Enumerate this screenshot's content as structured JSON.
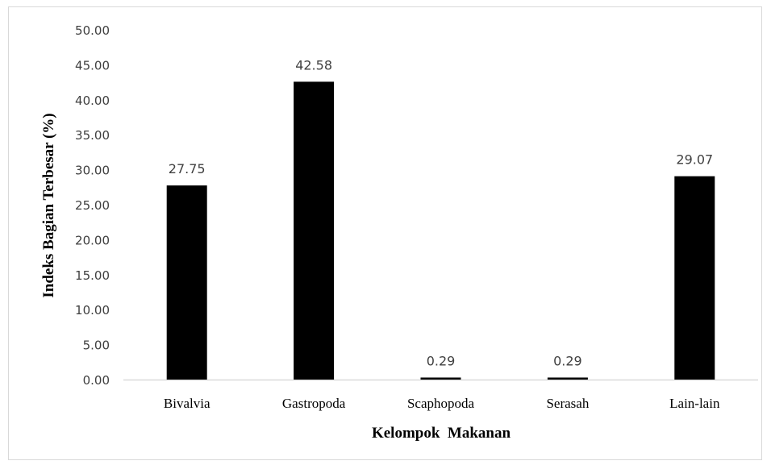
{
  "chart_data": {
    "type": "bar",
    "categories": [
      "Bivalvia",
      "Gastropoda",
      "Scaphopoda",
      "Serasah",
      "Lain-lain"
    ],
    "values": [
      27.75,
      42.58,
      0.29,
      0.29,
      29.07
    ],
    "data_labels": [
      "27.75",
      "42.58",
      "0.29",
      "0.29",
      "29.07"
    ],
    "xlabel": "Kelompok  Makanan",
    "ylabel": "Indeks Bagian Terbesar (%)",
    "ylim": [
      0,
      50
    ],
    "yticks": [
      "0.00",
      "5.00",
      "10.00",
      "15.00",
      "20.00",
      "25.00",
      "30.00",
      "35.00",
      "40.00",
      "45.00",
      "50.00"
    ],
    "grid": false,
    "bar_color": "#000000",
    "axis_color": "#d9d9d9"
  }
}
